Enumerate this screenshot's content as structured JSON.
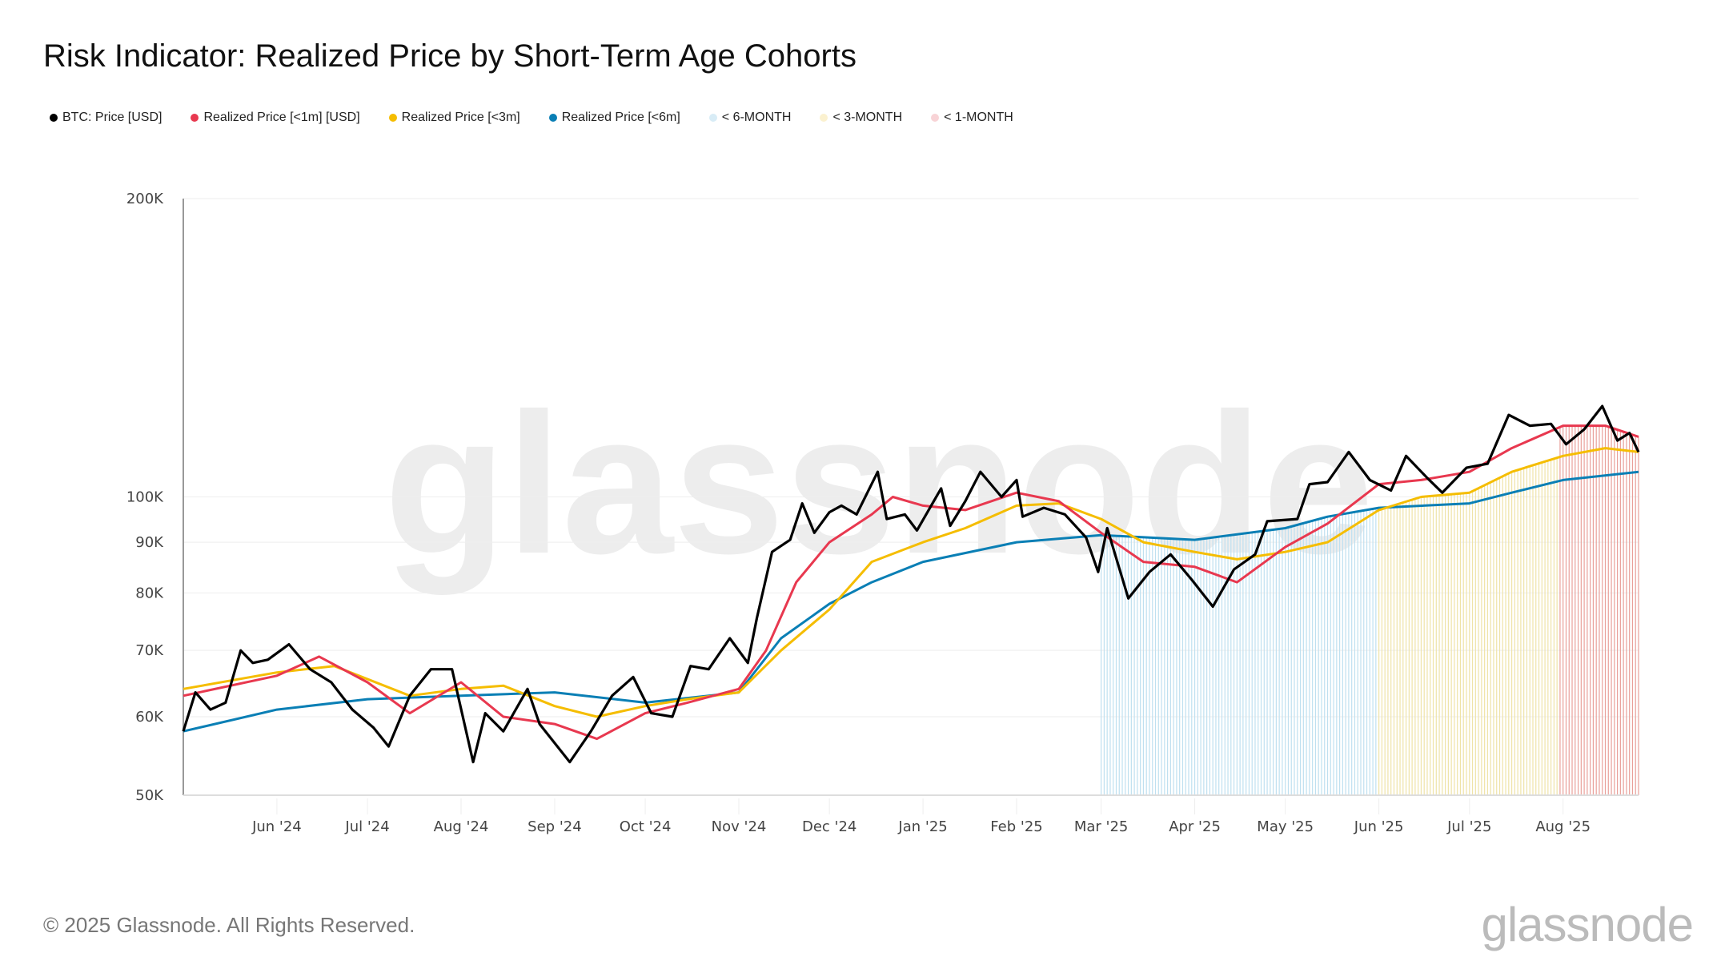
{
  "title": "Risk Indicator: Realized Price by Short-Term Age Cohorts",
  "footer": "© 2025 Glassnode. All Rights Reserved.",
  "logo": "glassnode",
  "watermark": "glassnode",
  "legend": [
    {
      "label": "BTC: Price [USD]",
      "color": "#000000"
    },
    {
      "label": "Realized Price [<1m] [USD]",
      "color": "#e8384f"
    },
    {
      "label": "Realized Price [<3m]",
      "color": "#f5bd00"
    },
    {
      "label": "Realized Price [<6m]",
      "color": "#0a7fb5"
    },
    {
      "label": "< 6-MONTH",
      "color": "#d8ecf6"
    },
    {
      "label": "< 3-MONTH",
      "color": "#fbf1cf"
    },
    {
      "label": "< 1-MONTH",
      "color": "#f8d3d6"
    }
  ],
  "chart_data": {
    "type": "line",
    "title": "Risk Indicator: Realized Price by Short-Term Age Cohorts",
    "yscale": "log",
    "ylim": [
      50000,
      200000
    ],
    "xlim": [
      "2024-05-01",
      "2025-08-26"
    ],
    "grid": true,
    "legend_position": "top-left",
    "y_ticks": [
      {
        "v": 50000,
        "l": "50K"
      },
      {
        "v": 60000,
        "l": "60K"
      },
      {
        "v": 70000,
        "l": "70K"
      },
      {
        "v": 80000,
        "l": "80K"
      },
      {
        "v": 90000,
        "l": "90K"
      },
      {
        "v": 100000,
        "l": "100K"
      },
      {
        "v": 200000,
        "l": "200K"
      }
    ],
    "x_ticks": [
      {
        "d": "2024-06-01",
        "l": "Jun '24"
      },
      {
        "d": "2024-07-01",
        "l": "Jul '24"
      },
      {
        "d": "2024-08-01",
        "l": "Aug '24"
      },
      {
        "d": "2024-09-01",
        "l": "Sep '24"
      },
      {
        "d": "2024-10-01",
        "l": "Oct '24"
      },
      {
        "d": "2024-11-01",
        "l": "Nov '24"
      },
      {
        "d": "2024-12-01",
        "l": "Dec '24"
      },
      {
        "d": "2025-01-01",
        "l": "Jan '25"
      },
      {
        "d": "2025-02-01",
        "l": "Feb '25"
      },
      {
        "d": "2025-03-01",
        "l": "Mar '25"
      },
      {
        "d": "2025-04-01",
        "l": "Apr '25"
      },
      {
        "d": "2025-05-01",
        "l": "May '25"
      },
      {
        "d": "2025-06-01",
        "l": "Jun '25"
      },
      {
        "d": "2025-07-01",
        "l": "Jul '25"
      },
      {
        "d": "2025-08-01",
        "l": "Aug '25"
      }
    ],
    "shaded_regions": [
      {
        "name": "< 6-MONTH",
        "from": "2025-03-01",
        "to": "2025-05-31",
        "color": "#bfe0f0",
        "bound": "Realized Price [<6m]"
      },
      {
        "name": "< 3-MONTH",
        "from": "2025-06-01",
        "to": "2025-07-30",
        "color": "#efe3a8",
        "bound": "Realized Price [<3m]"
      },
      {
        "name": "< 1-MONTH",
        "from": "2025-07-31",
        "to": "2025-08-26",
        "color": "#e9a09a",
        "bound": "Realized Price [<1m] [USD]"
      }
    ],
    "series": [
      {
        "name": "BTC: Price [USD]",
        "color": "#000000",
        "width": 3.2,
        "points": [
          [
            "2024-05-01",
            58000
          ],
          [
            "2024-05-05",
            63500
          ],
          [
            "2024-05-10",
            61000
          ],
          [
            "2024-05-15",
            62000
          ],
          [
            "2024-05-20",
            70000
          ],
          [
            "2024-05-24",
            68000
          ],
          [
            "2024-05-29",
            68500
          ],
          [
            "2024-06-05",
            71000
          ],
          [
            "2024-06-12",
            67000
          ],
          [
            "2024-06-19",
            65000
          ],
          [
            "2024-06-26",
            61000
          ],
          [
            "2024-07-03",
            58500
          ],
          [
            "2024-07-08",
            56000
          ],
          [
            "2024-07-15",
            63000
          ],
          [
            "2024-07-22",
            67000
          ],
          [
            "2024-07-29",
            67000
          ],
          [
            "2024-08-05",
            54000
          ],
          [
            "2024-08-09",
            60500
          ],
          [
            "2024-08-15",
            58000
          ],
          [
            "2024-08-23",
            64000
          ],
          [
            "2024-08-27",
            59000
          ],
          [
            "2024-09-06",
            54000
          ],
          [
            "2024-09-13",
            58000
          ],
          [
            "2024-09-20",
            63000
          ],
          [
            "2024-09-27",
            65800
          ],
          [
            "2024-10-03",
            60500
          ],
          [
            "2024-10-10",
            60000
          ],
          [
            "2024-10-16",
            67500
          ],
          [
            "2024-10-22",
            67000
          ],
          [
            "2024-10-29",
            72000
          ],
          [
            "2024-11-04",
            68000
          ],
          [
            "2024-11-07",
            75500
          ],
          [
            "2024-11-12",
            88000
          ],
          [
            "2024-11-18",
            90500
          ],
          [
            "2024-11-22",
            98500
          ],
          [
            "2024-11-26",
            92000
          ],
          [
            "2024-12-01",
            96500
          ],
          [
            "2024-12-05",
            98000
          ],
          [
            "2024-12-10",
            96000
          ],
          [
            "2024-12-17",
            106000
          ],
          [
            "2024-12-20",
            95000
          ],
          [
            "2024-12-26",
            96000
          ],
          [
            "2024-12-30",
            92500
          ],
          [
            "2025-01-07",
            102000
          ],
          [
            "2025-01-10",
            93500
          ],
          [
            "2025-01-15",
            99000
          ],
          [
            "2025-01-20",
            106000
          ],
          [
            "2025-01-27",
            100000
          ],
          [
            "2025-02-01",
            104000
          ],
          [
            "2025-02-03",
            95500
          ],
          [
            "2025-02-10",
            97500
          ],
          [
            "2025-02-17",
            96000
          ],
          [
            "2025-02-24",
            91000
          ],
          [
            "2025-02-28",
            84000
          ],
          [
            "2025-03-03",
            93000
          ],
          [
            "2025-03-10",
            79000
          ],
          [
            "2025-03-17",
            84000
          ],
          [
            "2025-03-24",
            87500
          ],
          [
            "2025-03-31",
            82500
          ],
          [
            "2025-04-07",
            77500
          ],
          [
            "2025-04-14",
            84500
          ],
          [
            "2025-04-21",
            87500
          ],
          [
            "2025-04-25",
            94500
          ],
          [
            "2025-05-05",
            95000
          ],
          [
            "2025-05-09",
            103000
          ],
          [
            "2025-05-15",
            103500
          ],
          [
            "2025-05-22",
            111000
          ],
          [
            "2025-05-29",
            104000
          ],
          [
            "2025-06-05",
            101500
          ],
          [
            "2025-06-10",
            110000
          ],
          [
            "2025-06-17",
            104500
          ],
          [
            "2025-06-22",
            101000
          ],
          [
            "2025-06-30",
            107000
          ],
          [
            "2025-07-07",
            108000
          ],
          [
            "2025-07-14",
            121000
          ],
          [
            "2025-07-21",
            118000
          ],
          [
            "2025-07-28",
            118500
          ],
          [
            "2025-08-02",
            113000
          ],
          [
            "2025-08-08",
            117000
          ],
          [
            "2025-08-14",
            123500
          ],
          [
            "2025-08-19",
            114000
          ],
          [
            "2025-08-23",
            116000
          ],
          [
            "2025-08-26",
            111000
          ]
        ]
      },
      {
        "name": "Realized Price [<1m] [USD]",
        "color": "#e8384f",
        "width": 3,
        "points": [
          [
            "2024-05-01",
            63000
          ],
          [
            "2024-06-01",
            66000
          ],
          [
            "2024-06-15",
            69000
          ],
          [
            "2024-07-01",
            65000
          ],
          [
            "2024-07-15",
            60500
          ],
          [
            "2024-08-01",
            65000
          ],
          [
            "2024-08-15",
            60000
          ],
          [
            "2024-09-01",
            59000
          ],
          [
            "2024-09-15",
            57000
          ],
          [
            "2024-10-01",
            60500
          ],
          [
            "2024-10-15",
            62000
          ],
          [
            "2024-11-01",
            64000
          ],
          [
            "2024-11-10",
            70000
          ],
          [
            "2024-11-20",
            82000
          ],
          [
            "2024-12-01",
            90000
          ],
          [
            "2024-12-15",
            96000
          ],
          [
            "2024-12-22",
            100000
          ],
          [
            "2025-01-01",
            98000
          ],
          [
            "2025-01-15",
            97000
          ],
          [
            "2025-02-01",
            101000
          ],
          [
            "2025-02-15",
            99000
          ],
          [
            "2025-03-01",
            92000
          ],
          [
            "2025-03-15",
            86000
          ],
          [
            "2025-04-01",
            85000
          ],
          [
            "2025-04-15",
            82000
          ],
          [
            "2025-05-01",
            89000
          ],
          [
            "2025-05-15",
            94000
          ],
          [
            "2025-06-01",
            103000
          ],
          [
            "2025-06-15",
            104000
          ],
          [
            "2025-07-01",
            106000
          ],
          [
            "2025-07-15",
            112000
          ],
          [
            "2025-08-01",
            118000
          ],
          [
            "2025-08-15",
            118000
          ],
          [
            "2025-08-26",
            115000
          ]
        ]
      },
      {
        "name": "Realized Price [<3m]",
        "color": "#f5bd00",
        "width": 3,
        "points": [
          [
            "2024-05-01",
            64000
          ],
          [
            "2024-06-01",
            66500
          ],
          [
            "2024-06-20",
            67500
          ],
          [
            "2024-07-15",
            63000
          ],
          [
            "2024-08-01",
            64000
          ],
          [
            "2024-08-15",
            64500
          ],
          [
            "2024-09-01",
            61500
          ],
          [
            "2024-09-15",
            60000
          ],
          [
            "2024-10-01",
            61500
          ],
          [
            "2024-10-15",
            62500
          ],
          [
            "2024-11-01",
            63500
          ],
          [
            "2024-11-15",
            70000
          ],
          [
            "2024-12-01",
            77000
          ],
          [
            "2024-12-15",
            86000
          ],
          [
            "2025-01-01",
            90000
          ],
          [
            "2025-01-15",
            93000
          ],
          [
            "2025-02-01",
            98000
          ],
          [
            "2025-02-15",
            98500
          ],
          [
            "2025-03-01",
            95000
          ],
          [
            "2025-03-15",
            90000
          ],
          [
            "2025-04-01",
            88000
          ],
          [
            "2025-04-15",
            86500
          ],
          [
            "2025-05-01",
            88000
          ],
          [
            "2025-05-15",
            90000
          ],
          [
            "2025-06-01",
            97000
          ],
          [
            "2025-06-15",
            100000
          ],
          [
            "2025-07-01",
            101000
          ],
          [
            "2025-07-15",
            106000
          ],
          [
            "2025-08-01",
            110000
          ],
          [
            "2025-08-15",
            112000
          ],
          [
            "2025-08-26",
            111000
          ]
        ]
      },
      {
        "name": "Realized Price [<6m]",
        "color": "#0a7fb5",
        "width": 3,
        "points": [
          [
            "2024-05-01",
            58000
          ],
          [
            "2024-06-01",
            61000
          ],
          [
            "2024-07-01",
            62500
          ],
          [
            "2024-08-01",
            63000
          ],
          [
            "2024-09-01",
            63500
          ],
          [
            "2024-10-01",
            62000
          ],
          [
            "2024-11-01",
            63500
          ],
          [
            "2024-11-15",
            72000
          ],
          [
            "2024-12-01",
            78000
          ],
          [
            "2024-12-15",
            82000
          ],
          [
            "2025-01-01",
            86000
          ],
          [
            "2025-02-01",
            90000
          ],
          [
            "2025-03-01",
            91500
          ],
          [
            "2025-04-01",
            90500
          ],
          [
            "2025-05-01",
            93000
          ],
          [
            "2025-05-15",
            95500
          ],
          [
            "2025-06-01",
            97500
          ],
          [
            "2025-07-01",
            98500
          ],
          [
            "2025-07-15",
            101000
          ],
          [
            "2025-08-01",
            104000
          ],
          [
            "2025-08-26",
            106000
          ]
        ]
      }
    ]
  }
}
